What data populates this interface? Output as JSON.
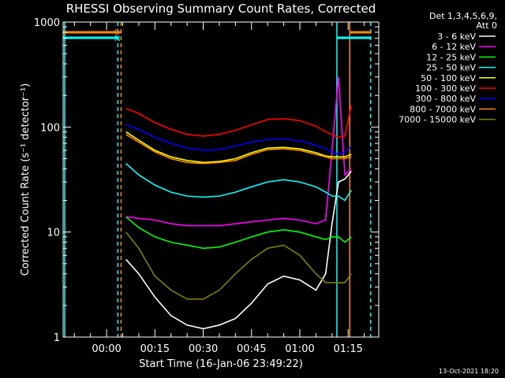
{
  "chart_data": {
    "type": "line",
    "title": "RHESSI Observing Summary Count Rates, Corrected",
    "xlabel": "Start Time (16-Jan-06 23:49:22)",
    "ylabel": "Corrected Count Rate (s⁻¹ detector⁻¹)",
    "yscale": "log",
    "ylim": [
      1,
      1000
    ],
    "xlim_min": [
      -13.5,
      84.5
    ],
    "y_ticks": [
      "1",
      "10",
      "100",
      "1000"
    ],
    "x_ticks": [
      {
        "t": 0,
        "label": "00:00"
      },
      {
        "t": 15,
        "label": "00:15"
      },
      {
        "t": 30,
        "label": "00:30"
      },
      {
        "t": 45,
        "label": "00:45"
      },
      {
        "t": 60,
        "label": "01:00"
      },
      {
        "t": 75,
        "label": "01:15"
      }
    ],
    "legend_header": [
      "Det 1,3,4,5,6,9,",
      "Att 0"
    ],
    "legend_position": "right, outside",
    "grid": false,
    "flags": [
      {
        "label": "S",
        "color": "#ff8c00"
      },
      {
        "label": "N",
        "color": "#00ffff"
      }
    ],
    "vertical_markers_min": [
      {
        "t": -13,
        "color": "#00ffff",
        "style": "solid"
      },
      {
        "t": 3.5,
        "color": "#00ffff",
        "style": "dashed"
      },
      {
        "t": 4.5,
        "color": "#ff8c00",
        "style": "dashed"
      },
      {
        "t": 71.5,
        "color": "#00ffff",
        "style": "solid"
      },
      {
        "t": 75.5,
        "color": "#ff8c00",
        "style": "solid"
      },
      {
        "t": 82,
        "color": "#00ffff",
        "style": "dashed"
      }
    ],
    "series": [
      {
        "name": "3 - 6 keV",
        "color": "#ffffff",
        "x": [
          6,
          10,
          15,
          20,
          25,
          30,
          35,
          40,
          45,
          50,
          55,
          60,
          65,
          68,
          70,
          72,
          74,
          76
        ],
        "y": [
          5.5,
          4,
          2.4,
          1.6,
          1.3,
          1.2,
          1.3,
          1.5,
          2.1,
          3.2,
          3.8,
          3.5,
          2.8,
          4,
          12,
          30,
          32,
          38
        ]
      },
      {
        "name": "6 - 12 keV",
        "color": "#ff00ff",
        "x": [
          6,
          10,
          15,
          20,
          25,
          30,
          35,
          40,
          45,
          50,
          55,
          60,
          65,
          68,
          70,
          72,
          74,
          76
        ],
        "y": [
          14,
          13.5,
          13,
          12,
          11.5,
          11.5,
          11.5,
          12,
          12.5,
          13,
          13.5,
          13,
          12,
          13,
          60,
          300,
          35,
          40
        ]
      },
      {
        "name": "12 - 25 keV",
        "color": "#00ff00",
        "x": [
          6,
          10,
          15,
          20,
          25,
          30,
          35,
          40,
          45,
          50,
          55,
          60,
          65,
          68,
          70,
          72,
          74,
          76
        ],
        "y": [
          14,
          11,
          9,
          8,
          7.5,
          7,
          7.2,
          8,
          9,
          10,
          10.5,
          10,
          9,
          8.5,
          9,
          9,
          8,
          9
        ]
      },
      {
        "name": "25 - 50 keV",
        "color": "#00ffff",
        "x": [
          6,
          10,
          15,
          20,
          25,
          30,
          35,
          40,
          45,
          50,
          55,
          60,
          65,
          68,
          70,
          72,
          74,
          76
        ],
        "y": [
          45,
          35,
          28,
          24,
          22,
          21.5,
          22,
          24,
          27,
          30,
          31.5,
          30,
          27,
          24,
          22,
          22,
          20,
          25
        ]
      },
      {
        "name": "50 - 100 keV",
        "color": "#ffff00",
        "x": [
          6,
          10,
          15,
          20,
          25,
          30,
          35,
          40,
          45,
          50,
          55,
          60,
          65,
          68,
          70,
          72,
          74,
          76
        ],
        "y": [
          90,
          75,
          60,
          52,
          48,
          46,
          47,
          50,
          57,
          63,
          64,
          62,
          57,
          53,
          52,
          52,
          52,
          55
        ]
      },
      {
        "name": "100 - 300 keV",
        "color": "#ff0000",
        "x": [
          6,
          10,
          15,
          20,
          25,
          30,
          35,
          40,
          45,
          50,
          55,
          60,
          65,
          68,
          70,
          72,
          74,
          76
        ],
        "y": [
          150,
          135,
          110,
          95,
          85,
          82,
          85,
          93,
          105,
          118,
          120,
          115,
          102,
          90,
          85,
          80,
          82,
          160
        ]
      },
      {
        "name": "300 - 800 keV",
        "color": "#0000ff",
        "x": [
          6,
          10,
          15,
          20,
          25,
          30,
          35,
          40,
          45,
          50,
          55,
          60,
          65,
          68,
          70,
          72,
          74,
          76
        ],
        "y": [
          105,
          95,
          80,
          70,
          63,
          60,
          61,
          66,
          72,
          76,
          77,
          74,
          67,
          62,
          58,
          55,
          58,
          65
        ]
      },
      {
        "name": "800 - 7000 keV",
        "color": "#ff8c00",
        "x": [
          6,
          10,
          15,
          20,
          25,
          30,
          35,
          40,
          45,
          50,
          55,
          60,
          65,
          68,
          70,
          72,
          74,
          76
        ],
        "y": [
          85,
          72,
          58,
          50,
          46,
          45,
          46,
          48,
          55,
          61,
          62,
          60,
          55,
          52,
          50,
          50,
          50,
          52
        ]
      },
      {
        "name": "7000 - 15000 keV",
        "color": "#808000",
        "x": [
          6,
          10,
          15,
          20,
          25,
          30,
          35,
          40,
          45,
          50,
          55,
          60,
          65,
          68,
          70,
          72,
          74,
          76
        ],
        "y": [
          10,
          7,
          3.8,
          2.8,
          2.3,
          2.3,
          2.8,
          4,
          5.5,
          7,
          7.5,
          6,
          4,
          3.3,
          3.3,
          3.3,
          3.3,
          4
        ]
      }
    ],
    "footer": "13-Oct-2021 18:20"
  }
}
